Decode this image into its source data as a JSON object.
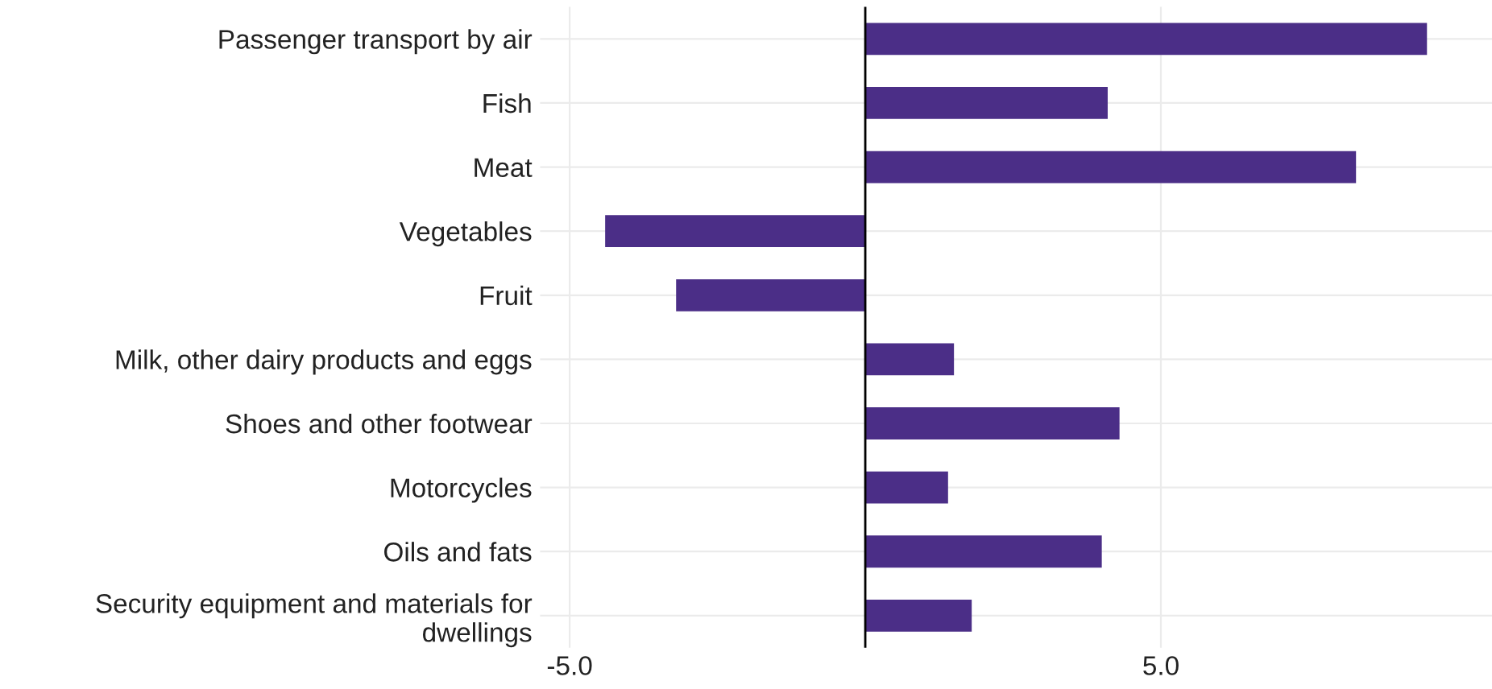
{
  "chart_data": {
    "type": "bar",
    "orientation": "horizontal",
    "categories": [
      "Passenger transport by air",
      "Fish",
      "Meat",
      "Vegetables",
      "Fruit",
      "Milk, other dairy products and eggs",
      "Shoes and other footwear",
      "Motorcycles",
      "Oils and fats",
      "Security equipment and materials for dwellings"
    ],
    "values": [
      9.5,
      4.1,
      8.3,
      -4.4,
      -3.2,
      1.5,
      4.3,
      1.4,
      4.0,
      1.8
    ],
    "color": "#4b2e87",
    "xlim": [
      -5.5,
      10.6
    ],
    "xticks": [
      {
        "value": -5,
        "label": "-5.0"
      },
      {
        "value": 5,
        "label": "5.0"
      }
    ],
    "ref_lines": [
      {
        "axis": "x",
        "value": 0,
        "color": "#000000"
      }
    ],
    "grid": true
  }
}
